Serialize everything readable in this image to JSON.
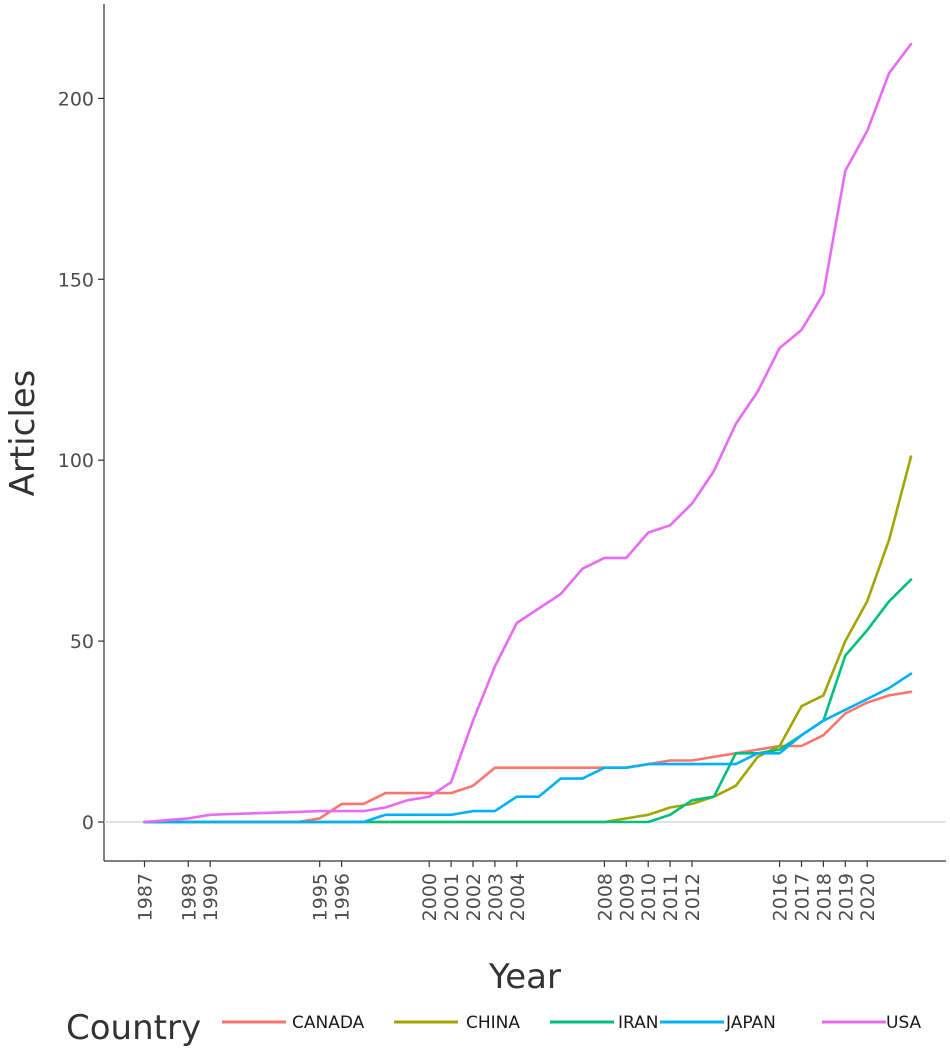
{
  "chart_data": {
    "type": "line",
    "title": "",
    "xlabel": "Year",
    "ylabel": "Articles",
    "x_tick_labels": [
      "1987",
      "1989",
      "1990",
      "1995",
      "1996",
      "2000",
      "2001",
      "2002",
      "2003",
      "2004",
      "2008",
      "2009",
      "2010",
      "2011",
      "2012",
      "2016",
      "2017",
      "2018",
      "2019",
      "2020"
    ],
    "xlim": [
      1987,
      2022
    ],
    "ylim": [
      -11,
      225
    ],
    "y_ticks": [
      0,
      50,
      100,
      150,
      200
    ],
    "grid": false,
    "legend": {
      "title": "Country",
      "placement": "bottom"
    },
    "x": [
      1987,
      1988,
      1989,
      1990,
      1991,
      1992,
      1993,
      1994,
      1995,
      1996,
      1997,
      1998,
      1999,
      2000,
      2001,
      2002,
      2003,
      2004,
      2005,
      2006,
      2007,
      2008,
      2009,
      2010,
      2011,
      2012,
      2013,
      2014,
      2015,
      2016,
      2017,
      2018,
      2019,
      2020,
      2021,
      2022
    ],
    "series": [
      {
        "name": "CANADA",
        "color": "#F8766D",
        "values": [
          0,
          0,
          0,
          0,
          0,
          0,
          0,
          0,
          1,
          5,
          5,
          8,
          8,
          8,
          8,
          10,
          15,
          15,
          15,
          15,
          15,
          15,
          15,
          16,
          17,
          17,
          18,
          19,
          20,
          21,
          21,
          24,
          30,
          33,
          35,
          36
        ]
      },
      {
        "name": "CHINA",
        "color": "#A3A500",
        "values": [
          0,
          0,
          0,
          0,
          0,
          0,
          0,
          0,
          0,
          0,
          0,
          0,
          0,
          0,
          0,
          0,
          0,
          0,
          0,
          0,
          0,
          0,
          1,
          2,
          4,
          5,
          7,
          10,
          18,
          21,
          32,
          35,
          50,
          61,
          78,
          101
        ]
      },
      {
        "name": "IRAN",
        "color": "#00BF7D",
        "values": [
          0,
          0,
          0,
          0,
          0,
          0,
          0,
          0,
          0,
          0,
          0,
          0,
          0,
          0,
          0,
          0,
          0,
          0,
          0,
          0,
          0,
          0,
          0,
          0,
          2,
          6,
          7,
          19,
          19,
          20,
          24,
          28,
          46,
          53,
          61,
          67
        ]
      },
      {
        "name": "JAPAN",
        "color": "#00B0F6",
        "values": [
          0,
          0,
          0,
          0,
          0,
          0,
          0,
          0,
          0,
          0,
          0,
          2,
          2,
          2,
          2,
          3,
          3,
          7,
          7,
          12,
          12,
          15,
          15,
          16,
          16,
          16,
          16,
          16,
          19,
          19,
          24,
          28,
          31,
          34,
          37,
          41
        ]
      },
      {
        "name": "USA",
        "color": "#E76BF3",
        "values": [
          0,
          0.5,
          1,
          2,
          2.2,
          2.4,
          2.6,
          2.8,
          3,
          3,
          3,
          4,
          6,
          7,
          11,
          28,
          43,
          55,
          59,
          63,
          70,
          73,
          73,
          80,
          82,
          88,
          97,
          110,
          119,
          131,
          136,
          146,
          180,
          191,
          207,
          215
        ]
      }
    ]
  }
}
